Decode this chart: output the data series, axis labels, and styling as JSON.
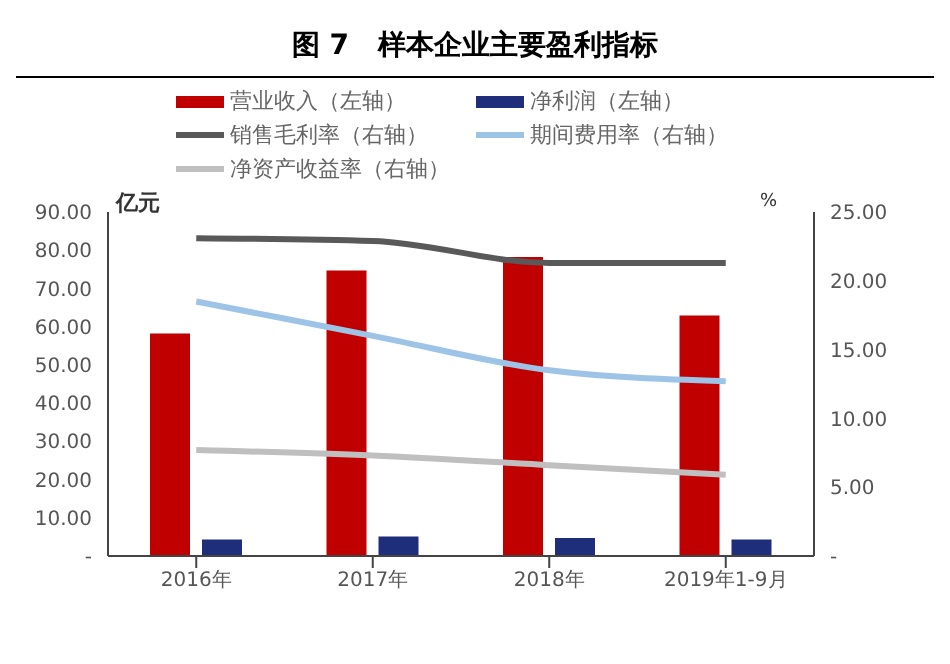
{
  "chart_data": {
    "type": "bar",
    "title": "图 7   样本企业主要盈利指标",
    "ylabel": "亿元",
    "y2label": "%",
    "categories": [
      "2016年",
      "2017年",
      "2018年",
      "2019年1-9月"
    ],
    "series": [
      {
        "name": "营业收入（左轴）",
        "color": "#c00000",
        "values": [
          58.2,
          74.7,
          78.2,
          62.9
        ]
      },
      {
        "name": "净利润（左轴）",
        "color": "#1f2e7a",
        "values": [
          4.3,
          5.1,
          4.7,
          4.3
        ]
      },
      {
        "name": "销售毛利率（右轴）",
        "type": "line",
        "axis": "y2",
        "color": "#595959",
        "values": [
          23.1,
          22.9,
          21.3,
          21.3
        ]
      },
      {
        "name": "期间费用率（右轴）",
        "type": "line",
        "axis": "y2",
        "color": "#9dc3e6",
        "values": [
          18.5,
          16.0,
          13.5,
          12.7
        ]
      },
      {
        "name": "净资产收益率（右轴）",
        "type": "line",
        "axis": "y2",
        "color": "#bfbfbf",
        "values": [
          7.7,
          7.3,
          6.6,
          5.9
        ]
      }
    ],
    "ylim": [
      0,
      90
    ],
    "yticks": [
      {
        "value": 0,
        "label": "-"
      },
      {
        "value": 10,
        "label": "10.00"
      },
      {
        "value": 20,
        "label": "20.00"
      },
      {
        "value": 30,
        "label": "30.00"
      },
      {
        "value": 40,
        "label": "40.00"
      },
      {
        "value": 50,
        "label": "50.00"
      },
      {
        "value": 60,
        "label": "60.00"
      },
      {
        "value": 70,
        "label": "70.00"
      },
      {
        "value": 80,
        "label": "80.00"
      },
      {
        "value": 90,
        "label": "90.00"
      }
    ],
    "y2lim": [
      0,
      25
    ],
    "y2ticks": [
      {
        "value": 0,
        "label": "-"
      },
      {
        "value": 5,
        "label": "5.00"
      },
      {
        "value": 10,
        "label": "10.00"
      },
      {
        "value": 15,
        "label": "15.00"
      },
      {
        "value": 20,
        "label": "20.00"
      },
      {
        "value": 25,
        "label": "25.00"
      }
    ],
    "grid": false,
    "legend": "top",
    "marker": "none",
    "line_style": "solid"
  }
}
